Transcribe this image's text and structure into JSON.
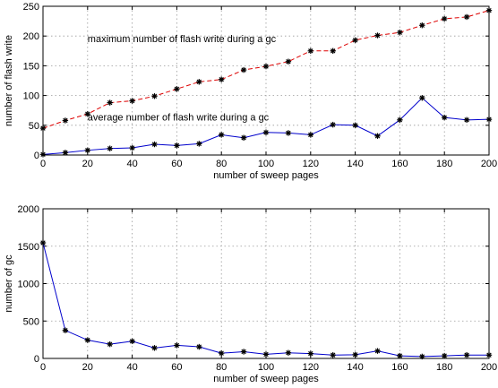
{
  "chart_data": [
    {
      "type": "line",
      "xlabel": "number of sweep pages",
      "ylabel": "number of flash write",
      "xlim": [
        0,
        200
      ],
      "ylim": [
        0,
        250
      ],
      "xticks": [
        0,
        20,
        40,
        60,
        80,
        100,
        120,
        140,
        160,
        180,
        200
      ],
      "yticks": [
        0,
        50,
        100,
        150,
        200,
        250
      ],
      "grid": true,
      "x": [
        0,
        10,
        20,
        30,
        40,
        50,
        60,
        70,
        80,
        90,
        100,
        110,
        120,
        130,
        140,
        150,
        160,
        170,
        180,
        190,
        200
      ],
      "series": [
        {
          "color": "#dd0000",
          "dash": true,
          "marker": "asterisk",
          "values": [
            45,
            58,
            69,
            88,
            91,
            99,
            111,
            123,
            127,
            143,
            149,
            157,
            175,
            175,
            193,
            201,
            206,
            218,
            229,
            232,
            243
          ]
        },
        {
          "color": "#0000cc",
          "dash": false,
          "marker": "asterisk",
          "values": [
            1,
            4,
            8,
            11,
            12,
            18,
            16,
            19,
            34,
            29,
            38,
            37,
            34,
            51,
            50,
            32,
            59,
            96,
            63,
            59,
            60
          ]
        }
      ],
      "annotations": [
        {
          "text": "maximum number of flash write during a gc",
          "x": 20,
          "y": 190
        },
        {
          "text": "average number of flash write during a gc",
          "x": 20,
          "y": 58
        }
      ]
    },
    {
      "type": "line",
      "xlabel": "number of sweep pages",
      "ylabel": "number of gc",
      "xlim": [
        0,
        200
      ],
      "ylim": [
        0,
        2000
      ],
      "xticks": [
        0,
        20,
        40,
        60,
        80,
        100,
        120,
        140,
        160,
        180,
        200
      ],
      "yticks": [
        0,
        500,
        1000,
        1500,
        2000
      ],
      "grid": true,
      "x": [
        0,
        10,
        20,
        30,
        40,
        50,
        60,
        70,
        80,
        90,
        100,
        110,
        120,
        130,
        140,
        150,
        160,
        170,
        180,
        190,
        200
      ],
      "series": [
        {
          "color": "#0000cc",
          "dash": false,
          "marker": "asterisk",
          "values": [
            1545,
            375,
            245,
            190,
            230,
            140,
            175,
            155,
            70,
            90,
            55,
            75,
            65,
            45,
            50,
            100,
            35,
            25,
            35,
            45,
            45
          ]
        }
      ],
      "annotations": []
    }
  ]
}
